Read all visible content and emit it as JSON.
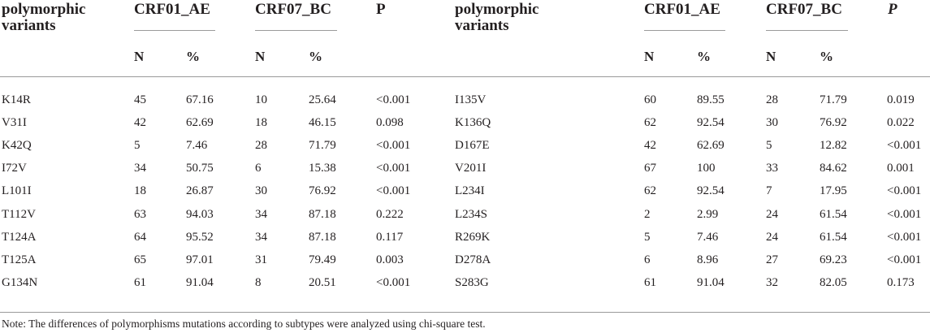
{
  "table": {
    "headers_left": {
      "variant": "polymorphic variants",
      "group1": "CRF01_AE",
      "group2": "CRF07_BC",
      "p": "P"
    },
    "headers_right": {
      "variant": "polymorphic variants",
      "group1": "CRF01_AE",
      "group2": "CRF07_BC",
      "p": "P"
    },
    "subheaders": {
      "n": "N",
      "pct": "%"
    },
    "left_rows": [
      {
        "variant": "K14R",
        "n1": "45",
        "p1": "67.16",
        "n2": "10",
        "p2": "25.64",
        "p": "<0.001"
      },
      {
        "variant": "V31I",
        "n1": "42",
        "p1": "62.69",
        "n2": "18",
        "p2": "46.15",
        "p": "0.098"
      },
      {
        "variant": "K42Q",
        "n1": "5",
        "p1": "7.46",
        "n2": "28",
        "p2": "71.79",
        "p": "<0.001"
      },
      {
        "variant": "I72V",
        "n1": "34",
        "p1": "50.75",
        "n2": "6",
        "p2": "15.38",
        "p": "<0.001"
      },
      {
        "variant": "L101I",
        "n1": "18",
        "p1": "26.87",
        "n2": "30",
        "p2": "76.92",
        "p": "<0.001"
      },
      {
        "variant": "T112V",
        "n1": "63",
        "p1": "94.03",
        "n2": "34",
        "p2": "87.18",
        "p": "0.222"
      },
      {
        "variant": "T124A",
        "n1": "64",
        "p1": "95.52",
        "n2": "34",
        "p2": "87.18",
        "p": "0.117"
      },
      {
        "variant": "T125A",
        "n1": "65",
        "p1": "97.01",
        "n2": "31",
        "p2": "79.49",
        "p": "0.003"
      },
      {
        "variant": "G134N",
        "n1": "61",
        "p1": "91.04",
        "n2": "8",
        "p2": "20.51",
        "p": "<0.001"
      }
    ],
    "right_rows": [
      {
        "variant": "I135V",
        "n1": "60",
        "p1": "89.55",
        "n2": "28",
        "p2": "71.79",
        "p": "0.019"
      },
      {
        "variant": "K136Q",
        "n1": "62",
        "p1": "92.54",
        "n2": "30",
        "p2": "76.92",
        "p": "0.022"
      },
      {
        "variant": "D167E",
        "n1": "42",
        "p1": "62.69",
        "n2": "5",
        "p2": "12.82",
        "p": "<0.001"
      },
      {
        "variant": "V201I",
        "n1": "67",
        "p1": "100",
        "n2": "33",
        "p2": "84.62",
        "p": "0.001"
      },
      {
        "variant": "L234I",
        "n1": "62",
        "p1": "92.54",
        "n2": "7",
        "p2": "17.95",
        "p": "<0.001"
      },
      {
        "variant": "L234S",
        "n1": "2",
        "p1": "2.99",
        "n2": "24",
        "p2": "61.54",
        "p": "<0.001"
      },
      {
        "variant": "R269K",
        "n1": "5",
        "p1": "7.46",
        "n2": "24",
        "p2": "61.54",
        "p": "<0.001"
      },
      {
        "variant": "D278A",
        "n1": "6",
        "p1": "8.96",
        "n2": "27",
        "p2": "69.23",
        "p": "<0.001"
      },
      {
        "variant": "S283G",
        "n1": "61",
        "p1": "91.04",
        "n2": "32",
        "p2": "82.05",
        "p": "0.173"
      }
    ],
    "note": "Note: The differences of polymorphisms mutations according to subtypes were analyzed using chi-square test."
  }
}
